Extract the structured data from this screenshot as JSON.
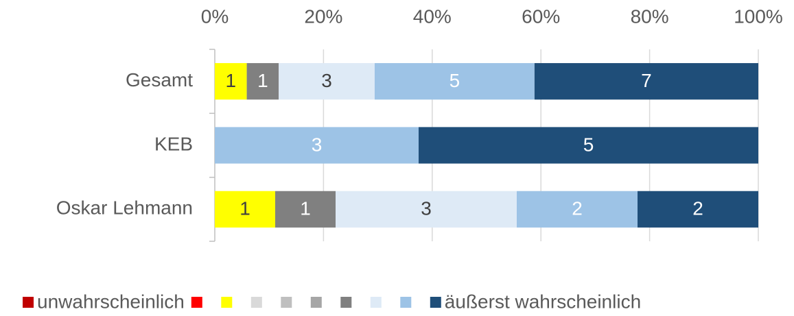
{
  "chart_data": {
    "type": "bar",
    "orientation": "horizontal",
    "stack": "percent",
    "categories": [
      "Gesamt",
      "KEB",
      "Oskar Lehmann"
    ],
    "series": [
      {
        "name": "unwahrscheinlich",
        "color": "#c00000",
        "values": [
          null,
          null,
          null
        ]
      },
      {
        "name": null,
        "color": "#ff0000",
        "values": [
          null,
          null,
          null
        ]
      },
      {
        "name": null,
        "color": "#ffff00",
        "values": [
          1,
          null,
          1
        ]
      },
      {
        "name": null,
        "color": "#d9d9d9",
        "values": [
          null,
          null,
          null
        ]
      },
      {
        "name": null,
        "color": "#bfbfbf",
        "values": [
          null,
          null,
          null
        ]
      },
      {
        "name": null,
        "color": "#a6a6a6",
        "values": [
          null,
          null,
          null
        ]
      },
      {
        "name": null,
        "color": "#808080",
        "values": [
          1,
          null,
          1
        ]
      },
      {
        "name": null,
        "color": "#deeaf6",
        "values": [
          3,
          null,
          3
        ]
      },
      {
        "name": null,
        "color": "#9dc3e6",
        "values": [
          5,
          3,
          2
        ]
      },
      {
        "name": "äußerst wahrscheinlich",
        "color": "#1f4e79",
        "values": [
          7,
          5,
          2
        ]
      }
    ],
    "xlim": [
      0,
      100
    ],
    "xticks": [
      {
        "value": 0,
        "label": "0%"
      },
      {
        "value": 20,
        "label": "20%"
      },
      {
        "value": 40,
        "label": "40%"
      },
      {
        "value": 60,
        "label": "60%"
      },
      {
        "value": 80,
        "label": "80%"
      },
      {
        "value": 100,
        "label": "100%"
      }
    ],
    "grid": true,
    "legend": "bottom"
  }
}
